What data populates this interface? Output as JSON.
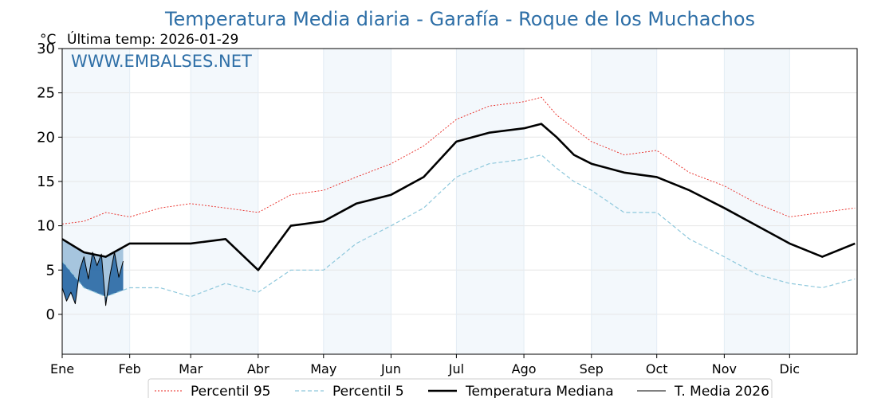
{
  "chart_data": {
    "type": "line",
    "title": "Temperatura Media diaria - Garafía - Roque de los Muchachos",
    "unit_label": "°C",
    "last_update": "Última temp: 2026-01-29",
    "watermark": "WWW.EMBALSES.NET",
    "ylim": [
      -4.5,
      30
    ],
    "yticks": [
      0,
      5,
      10,
      15,
      20,
      25,
      30
    ],
    "months": [
      "Ene",
      "Feb",
      "Mar",
      "Abr",
      "May",
      "Jun",
      "Jul",
      "Ago",
      "Sep",
      "Oct",
      "Nov",
      "Dic"
    ],
    "month_start_days": [
      0,
      31,
      59,
      90,
      120,
      151,
      181,
      212,
      243,
      273,
      304,
      334
    ],
    "days_in_year": 365,
    "legend": [
      "Percentil 95",
      "Percentil 5",
      "Temperatura Mediana",
      "T. Media 2026"
    ],
    "series": [
      {
        "name": "Percentil 95",
        "color": "#e8251f",
        "style": "dotted",
        "x": [
          0,
          10,
          20,
          31,
          45,
          59,
          75,
          90,
          105,
          120,
          135,
          151,
          166,
          181,
          196,
          212,
          220,
          227,
          235,
          243,
          258,
          273,
          288,
          304,
          319,
          334,
          349,
          364
        ],
        "values": [
          10.2,
          10.5,
          11.5,
          11.0,
          12.0,
          12.5,
          12.0,
          11.5,
          13.5,
          14.0,
          15.5,
          17.0,
          19.0,
          22.0,
          23.5,
          24.0,
          24.5,
          22.5,
          21.0,
          19.5,
          18.0,
          18.5,
          16.0,
          14.5,
          12.5,
          11.0,
          11.5,
          12.0
        ]
      },
      {
        "name": "Percentil 5",
        "color": "#8ec8dc",
        "style": "dashed",
        "x": [
          0,
          10,
          20,
          31,
          45,
          59,
          75,
          90,
          105,
          120,
          135,
          151,
          166,
          181,
          196,
          212,
          220,
          227,
          235,
          243,
          258,
          273,
          288,
          304,
          319,
          334,
          349,
          364
        ],
        "values": [
          6.0,
          3.0,
          2.0,
          3.0,
          3.0,
          2.0,
          3.5,
          2.5,
          5.0,
          5.0,
          8.0,
          10.0,
          12.0,
          15.5,
          17.0,
          17.5,
          18.0,
          16.5,
          15.0,
          14.0,
          11.5,
          11.5,
          8.5,
          6.5,
          4.5,
          3.5,
          3.0,
          4.0
        ]
      },
      {
        "name": "Temperatura Mediana",
        "color": "#000000",
        "style": "thick",
        "x": [
          0,
          10,
          20,
          31,
          45,
          59,
          75,
          90,
          105,
          120,
          135,
          151,
          166,
          181,
          196,
          212,
          220,
          227,
          235,
          243,
          258,
          273,
          288,
          304,
          319,
          334,
          349,
          364
        ],
        "values": [
          8.5,
          7.0,
          6.5,
          8.0,
          8.0,
          8.0,
          8.5,
          5.0,
          10.0,
          10.5,
          12.5,
          13.5,
          15.5,
          19.5,
          20.5,
          21.0,
          21.5,
          20.0,
          18.0,
          17.0,
          16.0,
          15.5,
          14.0,
          12.0,
          10.0,
          8.0,
          6.5,
          8.0
        ]
      },
      {
        "name": "T. Media 2026",
        "color": "#000000",
        "style": "thin",
        "x": [
          0,
          2,
          4,
          6,
          8,
          10,
          12,
          14,
          16,
          18,
          20,
          22,
          24,
          26,
          28
        ],
        "values": [
          3.0,
          1.5,
          2.5,
          1.2,
          5.0,
          6.5,
          4.0,
          7.0,
          5.5,
          6.8,
          1.0,
          4.5,
          7.0,
          4.2,
          6.0
        ]
      }
    ]
  }
}
